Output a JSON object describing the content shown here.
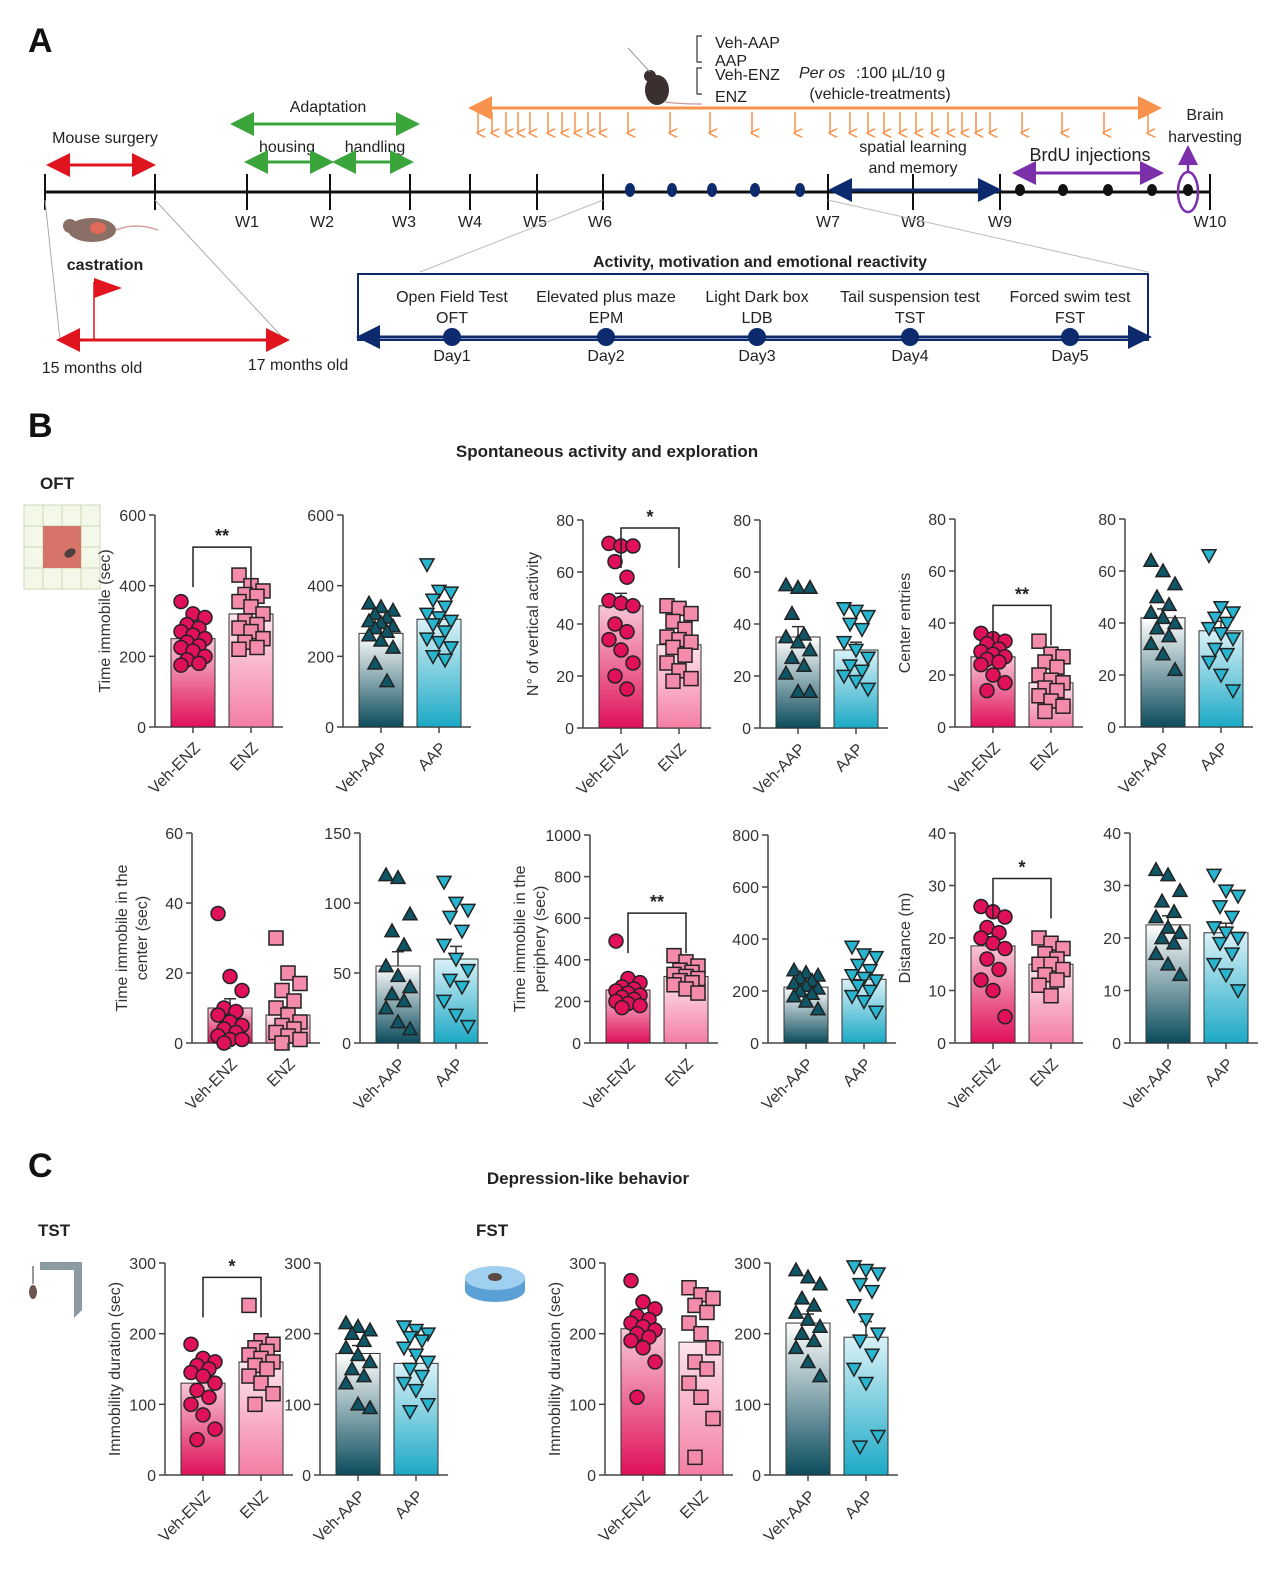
{
  "panel_labels": {
    "a": "A",
    "b": "B",
    "c": "C"
  },
  "timeline": {
    "weeks": [
      "W1",
      "W2",
      "W3",
      "W4",
      "W5",
      "W6",
      "W7",
      "W8",
      "W9",
      "W10"
    ],
    "mouse_surgery": "Mouse surgery",
    "castration": "castration",
    "age_start": "15 months old",
    "age_end": "17 months old",
    "adaptation": "Adaptation",
    "housing": "housing",
    "handling": "handling",
    "groups": [
      "Veh-AAP",
      "AAP",
      "Veh-ENZ",
      "ENZ"
    ],
    "per_os_prefix": "Per os",
    "per_os_dose": ":100 µL/10 g",
    "vehicle_treatments": "(vehicle-treatments)",
    "spatial_1": "spatial learning",
    "spatial_2": "and memory",
    "brdu": "BrdU injections",
    "brain_1": "Brain",
    "brain_2": "harvesting",
    "box_title": "Activity, motivation and emotional reactivity",
    "tests": [
      {
        "name": "Open Field Test",
        "abbr": "OFT",
        "day": "Day1"
      },
      {
        "name": "Elevated plus maze",
        "abbr": "EPM",
        "day": "Day2"
      },
      {
        "name": "Light Dark box",
        "abbr": "LDB",
        "day": "Day3"
      },
      {
        "name": "Tail suspension test",
        "abbr": "TST",
        "day": "Day4"
      },
      {
        "name": "Forced swim test",
        "abbr": "FST",
        "day": "Day5"
      }
    ],
    "colors": {
      "surgery": "#e0141e",
      "adaptation": "#3aa53a",
      "treatment": "#f7934c",
      "spatial": "#0d2a6e",
      "brdu": "#7b2fa8"
    }
  },
  "section_b": {
    "title": "Spontaneous activity and exploration",
    "test": "OFT"
  },
  "section_c": {
    "title": "Depression-like behavior",
    "test_1": "TST",
    "test_2": "FST"
  },
  "colors": {
    "veh_enz": "#e0105a",
    "enz": "#f47ea3",
    "veh_aap": "#0b4c5c",
    "aap": "#1ba9c6"
  },
  "chart_data": [
    {
      "type": "bar",
      "ylabel": [
        "Time immobile (sec)"
      ],
      "sig": "**",
      "pairs": [
        {
          "ylim": [
            0,
            600
          ],
          "yticks": [
            0,
            200,
            400,
            600
          ],
          "groups": [
            {
              "name": "Veh-ENZ",
              "mean": 250,
              "points": [
                355,
                320,
                310,
                290,
                280,
                270,
                260,
                250,
                240,
                230,
                225,
                215,
                200,
                190,
                180,
                175
              ]
            },
            {
              "name": "ENZ",
              "mean": 320,
              "points": [
                430,
                400,
                385,
                375,
                370,
                355,
                340,
                320,
                300,
                290,
                280,
                270,
                250,
                240,
                225,
                220
              ]
            }
          ]
        },
        {
          "ylim": [
            0,
            600
          ],
          "yticks": [
            0,
            200,
            400,
            600
          ],
          "groups": [
            {
              "name": "Veh-AAP",
              "mean": 265,
              "points": [
                350,
                340,
                330,
                320,
                310,
                300,
                295,
                285,
                280,
                270,
                260,
                245,
                225,
                180,
                130
              ]
            },
            {
              "name": "AAP",
              "mean": 305,
              "points": [
                460,
                385,
                380,
                360,
                340,
                320,
                310,
                300,
                290,
                270,
                250,
                240,
                225,
                200,
                190
              ]
            }
          ]
        }
      ]
    },
    {
      "type": "bar",
      "ylabel": [
        "N° of vertical activity"
      ],
      "sig": "*",
      "pairs": [
        {
          "ylim": [
            0,
            80
          ],
          "yticks": [
            0,
            20,
            40,
            60,
            80
          ],
          "groups": [
            {
              "name": "Veh-ENZ",
              "mean": 47,
              "points": [
                71,
                70,
                70,
                64,
                58,
                49,
                48,
                47,
                40,
                37,
                34,
                30,
                25,
                20,
                15
              ]
            },
            {
              "name": "ENZ",
              "mean": 32,
              "points": [
                47,
                46,
                44,
                41,
                38,
                35,
                34,
                33,
                31,
                28,
                25,
                22,
                19,
                18
              ]
            }
          ]
        },
        {
          "ylim": [
            0,
            80
          ],
          "yticks": [
            0,
            20,
            40,
            60,
            80
          ],
          "groups": [
            {
              "name": "Veh-AAP",
              "mean": 35,
              "points": [
                55,
                54,
                54,
                44,
                36,
                35,
                33,
                30,
                27,
                24,
                21,
                14,
                14
              ]
            },
            {
              "name": "AAP",
              "mean": 30,
              "points": [
                46,
                45,
                43,
                40,
                38,
                33,
                30,
                27,
                24,
                22,
                20,
                18,
                15
              ]
            }
          ]
        }
      ]
    },
    {
      "type": "bar",
      "ylabel": [
        "Center entries"
      ],
      "sig": "**",
      "pairs": [
        {
          "ylim": [
            0,
            80
          ],
          "yticks": [
            0,
            20,
            40,
            60,
            80
          ],
          "groups": [
            {
              "name": "Veh-ENZ",
              "mean": 27,
              "points": [
                36,
                34,
                33,
                32,
                30,
                29,
                28,
                27,
                26,
                25,
                24,
                20,
                17,
                14
              ]
            },
            {
              "name": "ENZ",
              "mean": 17,
              "points": [
                33,
                28,
                27,
                25,
                23,
                20,
                18,
                17,
                15,
                14,
                12,
                10,
                8,
                6
              ]
            }
          ]
        },
        {
          "ylim": [
            0,
            80
          ],
          "yticks": [
            0,
            20,
            40,
            60,
            80
          ],
          "groups": [
            {
              "name": "Veh-AAP",
              "mean": 42,
              "points": [
                64,
                60,
                55,
                50,
                47,
                44,
                42,
                40,
                38,
                35,
                32,
                28,
                22
              ]
            },
            {
              "name": "AAP",
              "mean": 37,
              "points": [
                66,
                46,
                44,
                42,
                40,
                38,
                36,
                34,
                30,
                28,
                25,
                20,
                14
              ]
            }
          ]
        }
      ]
    },
    {
      "type": "bar",
      "ylabel": [
        "Time immobile in the",
        "center (sec)"
      ],
      "sig": "",
      "pairs": [
        {
          "ylim": [
            0,
            60
          ],
          "yticks": [
            0,
            20,
            40,
            60
          ],
          "groups": [
            {
              "name": "Veh-ENZ",
              "mean": 10,
              "points": [
                37,
                19,
                15,
                10,
                9,
                8,
                6,
                5,
                4,
                3,
                2,
                1,
                1,
                0
              ]
            },
            {
              "name": "ENZ",
              "mean": 8,
              "points": [
                30,
                20,
                17,
                15,
                12,
                10,
                8,
                6,
                5,
                4,
                3,
                2,
                1,
                0
              ]
            }
          ]
        },
        {
          "ylim": [
            0,
            150
          ],
          "yticks": [
            0,
            50,
            100,
            150
          ],
          "groups": [
            {
              "name": "Veh-AAP",
              "mean": 55,
              "points": [
                120,
                118,
                92,
                80,
                70,
                55,
                48,
                40,
                35,
                30,
                25,
                15,
                10
              ]
            },
            {
              "name": "AAP",
              "mean": 60,
              "points": [
                115,
                100,
                95,
                90,
                80,
                70,
                60,
                52,
                45,
                40,
                30,
                20,
                12
              ]
            }
          ]
        }
      ]
    },
    {
      "type": "bar",
      "ylabel": [
        "Time immobile in the",
        "periphery (sec)"
      ],
      "sig": "**",
      "pairs": [
        {
          "ylim": [
            0,
            1000
          ],
          "yticks": [
            0,
            200,
            400,
            600,
            800,
            1000
          ],
          "groups": [
            {
              "name": "Veh-ENZ",
              "mean": 255,
              "points": [
                490,
                310,
                290,
                270,
                260,
                250,
                240,
                230,
                220,
                210,
                200,
                190,
                180,
                170
              ]
            },
            {
              "name": "ENZ",
              "mean": 320,
              "points": [
                420,
                390,
                370,
                350,
                340,
                330,
                320,
                310,
                300,
                290,
                280,
                260,
                240
              ]
            }
          ]
        },
        {
          "ylim": [
            0,
            800
          ],
          "yticks": [
            0,
            200,
            400,
            600,
            800
          ],
          "groups": [
            {
              "name": "Veh-AAP",
              "mean": 215,
              "points": [
                280,
                270,
                260,
                250,
                240,
                230,
                220,
                210,
                200,
                190,
                180,
                160,
                130
              ]
            },
            {
              "name": "AAP",
              "mean": 245,
              "points": [
                370,
                340,
                330,
                300,
                280,
                260,
                250,
                240,
                220,
                200,
                180,
                160,
                120
              ]
            }
          ]
        }
      ]
    },
    {
      "type": "bar",
      "ylabel": [
        "Distance (m)"
      ],
      "sig": "*",
      "pairs": [
        {
          "ylim": [
            0,
            40
          ],
          "yticks": [
            0,
            10,
            20,
            30,
            40
          ],
          "groups": [
            {
              "name": "Veh-ENZ",
              "mean": 18.5,
              "points": [
                26,
                25,
                24,
                22,
                21,
                20,
                19,
                18,
                16,
                14,
                12,
                10,
                5
              ]
            },
            {
              "name": "ENZ",
              "mean": 15,
              "points": [
                20,
                19,
                18,
                17,
                16,
                15,
                15,
                14,
                13,
                12,
                11,
                9
              ]
            }
          ]
        },
        {
          "ylim": [
            0,
            40
          ],
          "yticks": [
            0,
            10,
            20,
            30,
            40
          ],
          "groups": [
            {
              "name": "Veh-AAP",
              "mean": 22.5,
              "points": [
                33,
                32,
                29,
                27,
                25,
                24,
                22,
                21,
                20,
                19,
                17,
                15,
                13
              ]
            },
            {
              "name": "AAP",
              "mean": 21,
              "points": [
                32,
                29,
                28,
                26,
                24,
                22,
                21,
                20,
                19,
                17,
                15,
                13,
                10
              ]
            }
          ]
        }
      ]
    },
    {
      "type": "bar",
      "ylabel": [
        "Immobility duration (sec)"
      ],
      "sig": "*",
      "pairs": [
        {
          "ylim": [
            0,
            300
          ],
          "yticks": [
            0,
            100,
            200,
            300
          ],
          "groups": [
            {
              "name": "Veh-ENZ",
              "mean": 130,
              "points": [
                185,
                165,
                160,
                155,
                150,
                145,
                140,
                130,
                120,
                110,
                100,
                85,
                65,
                50
              ]
            },
            {
              "name": "ENZ",
              "mean": 160,
              "points": [
                240,
                190,
                185,
                180,
                175,
                170,
                165,
                160,
                155,
                150,
                140,
                130,
                115,
                100
              ]
            }
          ]
        },
        {
          "ylim": [
            0,
            300
          ],
          "yticks": [
            0,
            100,
            200,
            300
          ],
          "groups": [
            {
              "name": "Veh-AAP",
              "mean": 172,
              "points": [
                215,
                210,
                205,
                200,
                190,
                180,
                170,
                160,
                150,
                140,
                130,
                100,
                95
              ]
            },
            {
              "name": "AAP",
              "mean": 158,
              "points": [
                210,
                205,
                200,
                195,
                190,
                180,
                170,
                160,
                150,
                140,
                130,
                120,
                100,
                90
              ]
            }
          ]
        }
      ]
    },
    {
      "type": "bar",
      "ylabel": [
        "Immobility duration (sec)"
      ],
      "sig": "",
      "pairs": [
        {
          "ylim": [
            0,
            300
          ],
          "yticks": [
            0,
            100,
            200,
            300
          ],
          "groups": [
            {
              "name": "Veh-ENZ",
              "mean": 207,
              "points": [
                275,
                245,
                235,
                225,
                220,
                215,
                210,
                205,
                200,
                195,
                190,
                180,
                160,
                110
              ]
            },
            {
              "name": "ENZ",
              "mean": 188,
              "points": [
                265,
                255,
                250,
                240,
                230,
                215,
                200,
                180,
                160,
                150,
                130,
                110,
                80,
                25
              ]
            }
          ]
        },
        {
          "ylim": [
            0,
            300
          ],
          "yticks": [
            0,
            100,
            200,
            300
          ],
          "groups": [
            {
              "name": "Veh-AAP",
              "mean": 215,
              "points": [
                290,
                280,
                270,
                250,
                240,
                230,
                220,
                210,
                200,
                190,
                180,
                160,
                140
              ]
            },
            {
              "name": "AAP",
              "mean": 195,
              "points": [
                295,
                290,
                285,
                270,
                260,
                240,
                220,
                200,
                190,
                170,
                150,
                130,
                55,
                40
              ]
            }
          ]
        }
      ]
    }
  ]
}
